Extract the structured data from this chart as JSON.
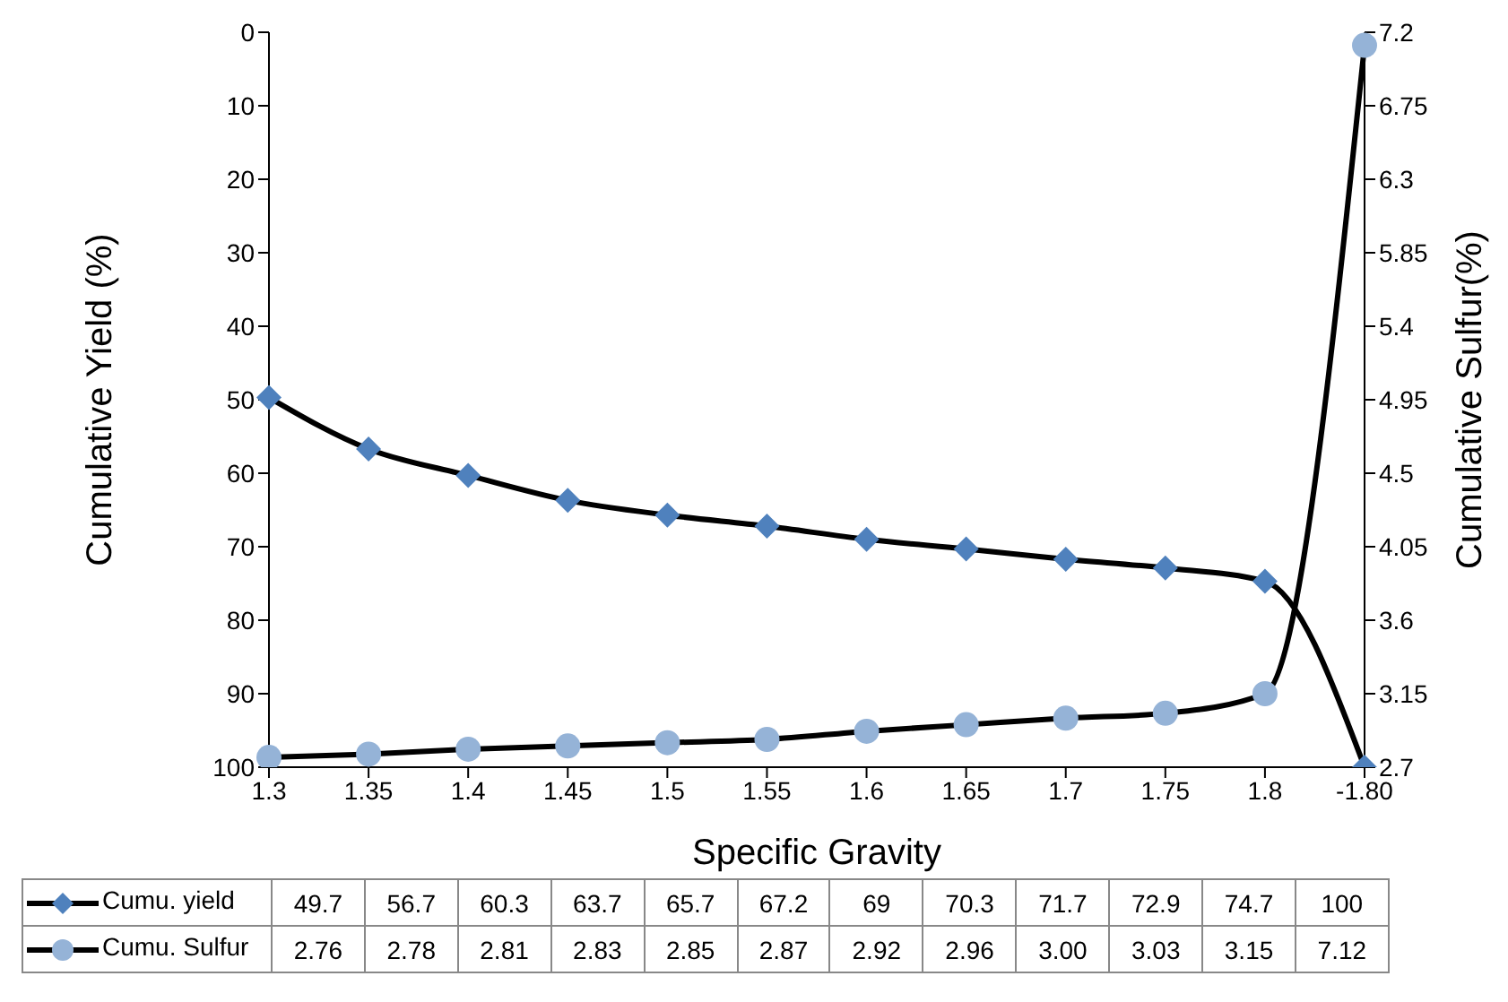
{
  "chart_data": {
    "type": "line",
    "xlabel": "Specific Gravity",
    "ylabel": "Cumulative Yield (%)",
    "y2label": "Cumulative Sulfur(%)",
    "categories": [
      "1.3",
      "1.35",
      "1.4",
      "1.45",
      "1.5",
      "1.55",
      "1.6",
      "1.65",
      "1.7",
      "1.75",
      "1.8",
      "-1.80"
    ],
    "ylim": [
      100,
      0
    ],
    "yticks": [
      0,
      10,
      20,
      30,
      40,
      50,
      60,
      70,
      80,
      90,
      100
    ],
    "y2lim": [
      2.7,
      7.2
    ],
    "y2ticks": [
      2.7,
      3.15,
      3.6,
      4.05,
      4.5,
      4.95,
      5.4,
      5.85,
      6.3,
      6.75,
      7.2
    ],
    "series": [
      {
        "name": "Cumu. yield",
        "color": "#4f81bd",
        "marker": "diamond",
        "values": [
          49.7,
          56.7,
          60.3,
          63.7,
          65.7,
          67.2,
          69,
          70.3,
          71.7,
          72.9,
          74.7,
          100
        ],
        "value_labels": [
          "49.7",
          "56.7",
          "60.3",
          "63.7",
          "65.7",
          "67.2",
          "69",
          "70.3",
          "71.7",
          "72.9",
          "74.7",
          "100"
        ]
      },
      {
        "name": "Cumu. Sulfur",
        "color": "#95b3d7",
        "marker": "circle",
        "axis": "y2",
        "values": [
          2.76,
          2.78,
          2.81,
          2.83,
          2.85,
          2.87,
          2.92,
          2.96,
          3.0,
          3.03,
          3.15,
          7.12
        ],
        "value_labels": [
          "2.76",
          "2.78",
          "2.81",
          "2.83",
          "2.85",
          "2.87",
          "2.92",
          "2.96",
          "3.00",
          "3.03",
          "3.15",
          "7.12"
        ]
      }
    ],
    "legend": "bottom",
    "grid": false
  }
}
